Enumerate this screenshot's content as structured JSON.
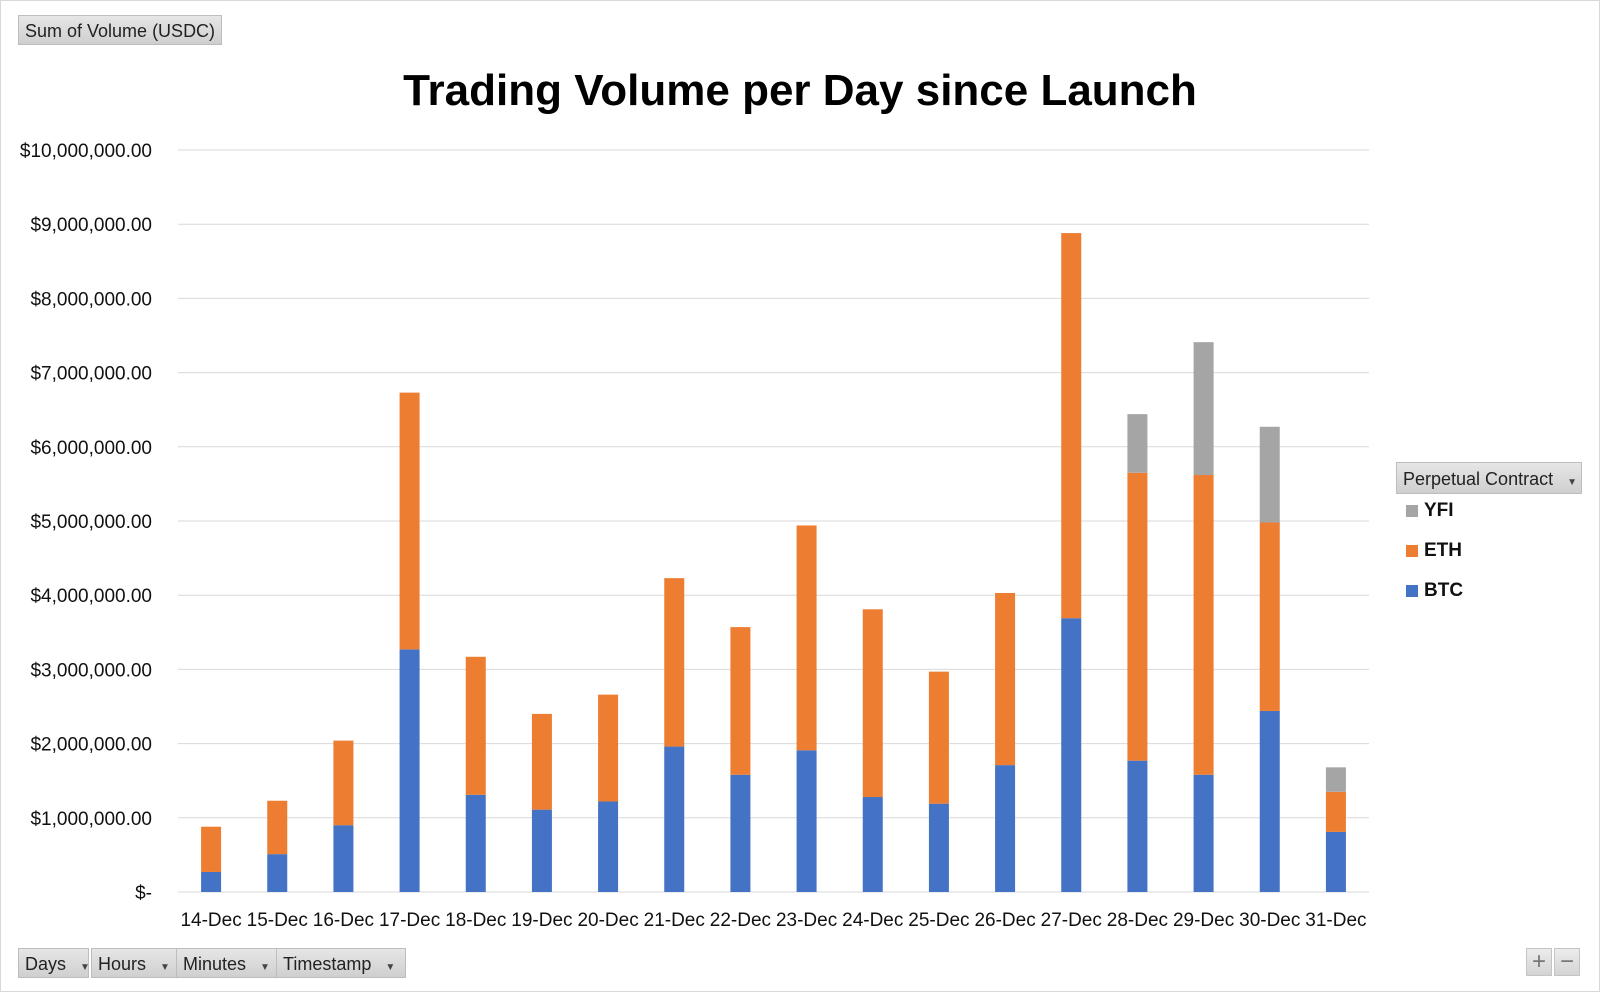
{
  "value_field": "Sum of Volume (USDC)",
  "legend_field": "Perpetual Contract",
  "axis_fields": [
    "Days",
    "Hours",
    "Minutes",
    "Timestamp"
  ],
  "zoom_in": "+",
  "zoom_out": "−",
  "colors": {
    "BTC": "#4472c4",
    "ETH": "#ed7d31",
    "YFI": "#a5a5a5",
    "grid": "#d9d9d9"
  },
  "chart_data": {
    "type": "bar",
    "stacked": true,
    "title": "Trading Volume per Day since Launch",
    "xlabel": "",
    "ylabel": "",
    "ylim": [
      0,
      10000000
    ],
    "yticks": [
      0,
      1000000,
      2000000,
      3000000,
      4000000,
      5000000,
      6000000,
      7000000,
      8000000,
      9000000,
      10000000
    ],
    "ytick_labels": [
      "$-",
      "$1,000,000.00",
      "$2,000,000.00",
      "$3,000,000.00",
      "$4,000,000.00",
      "$5,000,000.00",
      "$6,000,000.00",
      "$7,000,000.00",
      "$8,000,000.00",
      "$9,000,000.00",
      "$10,000,000.00"
    ],
    "grid": true,
    "legend_position": "right",
    "categories": [
      "14-Dec",
      "15-Dec",
      "16-Dec",
      "17-Dec",
      "18-Dec",
      "19-Dec",
      "20-Dec",
      "21-Dec",
      "22-Dec",
      "23-Dec",
      "24-Dec",
      "25-Dec",
      "26-Dec",
      "27-Dec",
      "28-Dec",
      "29-Dec",
      "30-Dec",
      "31-Dec"
    ],
    "series": [
      {
        "name": "BTC",
        "values": [
          270000,
          510000,
          900000,
          3270000,
          1310000,
          1110000,
          1220000,
          1960000,
          1580000,
          1910000,
          1280000,
          1190000,
          1710000,
          3690000,
          1770000,
          1580000,
          2440000,
          810000
        ]
      },
      {
        "name": "ETH",
        "values": [
          610000,
          720000,
          1140000,
          3460000,
          1860000,
          1290000,
          1440000,
          2270000,
          1990000,
          3030000,
          2530000,
          1780000,
          2320000,
          5190000,
          3880000,
          4040000,
          2540000,
          540000
        ]
      },
      {
        "name": "YFI",
        "values": [
          0,
          0,
          0,
          0,
          0,
          0,
          0,
          0,
          0,
          0,
          0,
          0,
          0,
          0,
          790000,
          1790000,
          1290000,
          330000
        ]
      }
    ]
  }
}
